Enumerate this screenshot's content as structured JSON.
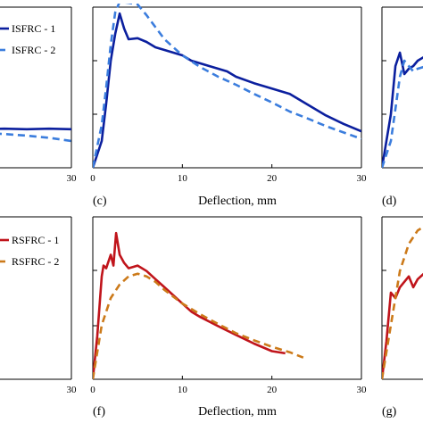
{
  "chart_data": [
    {
      "panel": "left-top-partial",
      "type": "line",
      "xlim": [
        0,
        30
      ],
      "x_ticks": [
        30
      ],
      "legend": {
        "placement": "top-left",
        "entries": [
          "ISFRC - 1",
          "ISFRC - 2"
        ]
      },
      "series": [
        {
          "name": "ISFRC - 1",
          "color": "#0b1f9e",
          "dash": false,
          "x": [
            20,
            22,
            24,
            26,
            28,
            30
          ],
          "y": [
            0.7,
            0.72,
            0.73,
            0.72,
            0.73,
            0.72
          ]
        },
        {
          "name": "ISFRC - 2",
          "color": "#3b7ddd",
          "dash": true,
          "x": [
            20,
            22,
            24,
            26,
            28,
            30
          ],
          "y": [
            0.66,
            0.65,
            0.63,
            0.6,
            0.56,
            0.5
          ]
        }
      ]
    },
    {
      "panel": "c",
      "type": "line",
      "label": "(c)",
      "xlabel": "Deflection, mm",
      "xlim": [
        0,
        30
      ],
      "ylim": [
        0,
        3
      ],
      "x_ticks": [
        0,
        10,
        20,
        30
      ],
      "series": [
        {
          "name": "ISFRC - 1",
          "color": "#0b1f9e",
          "dash": false,
          "x": [
            0,
            1,
            1.5,
            2,
            2.5,
            3,
            3.5,
            4,
            5,
            6,
            7,
            8,
            9,
            10,
            11,
            12,
            13,
            14,
            15,
            16,
            18,
            20,
            22,
            24,
            26,
            28,
            30
          ],
          "y": [
            0,
            0.5,
            1.2,
            2.0,
            2.5,
            2.88,
            2.6,
            2.4,
            2.42,
            2.35,
            2.25,
            2.2,
            2.15,
            2.1,
            2.0,
            1.95,
            1.9,
            1.85,
            1.8,
            1.7,
            1.58,
            1.48,
            1.38,
            1.18,
            0.98,
            0.82,
            0.68
          ]
        },
        {
          "name": "ISFRC - 2",
          "color": "#3b7ddd",
          "dash": true,
          "x": [
            0,
            1,
            1.5,
            2,
            2.5,
            3,
            4,
            5,
            6,
            8,
            10,
            12,
            14,
            16,
            18,
            20,
            22,
            24,
            26,
            28,
            30
          ],
          "y": [
            0,
            0.8,
            1.5,
            2.3,
            2.9,
            3.1,
            3.08,
            3.05,
            2.85,
            2.4,
            2.1,
            1.88,
            1.7,
            1.55,
            1.38,
            1.22,
            1.05,
            0.92,
            0.78,
            0.66,
            0.54
          ]
        }
      ]
    },
    {
      "panel": "d-partial",
      "type": "line",
      "label": "(d)",
      "xlim": [
        0,
        30
      ],
      "x_ticks": [],
      "series": [
        {
          "name": "ISFRC - 1",
          "color": "#0b1f9e",
          "dash": false,
          "x": [
            0,
            1,
            1.5,
            2,
            2.5,
            3,
            3.5,
            4,
            5,
            6,
            7,
            8
          ],
          "y": [
            0,
            1.0,
            1.9,
            2.15,
            1.75,
            1.85,
            1.9,
            2.0,
            2.1,
            2.3,
            2.6,
            2.95
          ]
        },
        {
          "name": "ISFRC - 2",
          "color": "#3b7ddd",
          "dash": true,
          "x": [
            0,
            1,
            1.5,
            2,
            2.5,
            3,
            3.5,
            4,
            5,
            6,
            7,
            8
          ],
          "y": [
            0,
            0.5,
            1.1,
            1.7,
            2.0,
            1.9,
            1.8,
            1.85,
            1.9,
            2.0,
            2.1,
            2.3
          ]
        }
      ]
    },
    {
      "panel": "left-bottom-partial",
      "type": "line",
      "xlim": [
        0,
        30
      ],
      "x_ticks": [
        30
      ],
      "legend": {
        "placement": "top-left",
        "entries": [
          "RSFRC - 1",
          "RSFRC - 2"
        ]
      },
      "series": []
    },
    {
      "panel": "f",
      "type": "line",
      "label": "(f)",
      "xlabel": "Deflection, mm",
      "xlim": [
        0,
        30
      ],
      "ylim": [
        0,
        3
      ],
      "x_ticks": [
        0,
        10,
        20,
        30
      ],
      "series": [
        {
          "name": "RSFRC - 1",
          "color": "#c0141b",
          "dash": false,
          "x": [
            0,
            0.5,
            1,
            1.2,
            1.5,
            2,
            2.3,
            2.6,
            3,
            3.5,
            4,
            5,
            6,
            7,
            8,
            9,
            10,
            11,
            12,
            14,
            16,
            18,
            20,
            21.5
          ],
          "y": [
            0,
            0.8,
            1.9,
            2.1,
            2.05,
            2.3,
            2.1,
            2.7,
            2.3,
            2.15,
            2.05,
            2.1,
            2.0,
            1.85,
            1.7,
            1.55,
            1.4,
            1.25,
            1.15,
            0.98,
            0.82,
            0.66,
            0.52,
            0.48
          ]
        },
        {
          "name": "RSFRC - 2",
          "color": "#cc7a1a",
          "dash": true,
          "x": [
            0,
            1,
            2,
            3,
            4,
            5,
            6,
            7,
            8,
            10,
            12,
            14,
            16,
            18,
            20,
            22,
            23.5
          ],
          "y": [
            0,
            1.0,
            1.5,
            1.75,
            1.9,
            1.95,
            1.9,
            1.8,
            1.65,
            1.4,
            1.2,
            1.02,
            0.85,
            0.72,
            0.6,
            0.5,
            0.4
          ]
        }
      ]
    },
    {
      "panel": "g-partial",
      "type": "line",
      "label": "(g)",
      "xlim": [
        0,
        30
      ],
      "x_ticks": [],
      "series": [
        {
          "name": "RSFRC - 1",
          "color": "#c0141b",
          "dash": false,
          "x": [
            0,
            0.5,
            1,
            1.5,
            2,
            2.5,
            3,
            3.5,
            4,
            5,
            6,
            7,
            8
          ],
          "y": [
            0,
            0.7,
            1.6,
            1.5,
            1.7,
            1.8,
            1.9,
            1.7,
            1.85,
            2.0,
            2.1,
            2.3,
            2.35
          ]
        },
        {
          "name": "RSFRC - 2",
          "color": "#cc7a1a",
          "dash": true,
          "x": [
            0,
            1,
            2,
            3,
            4,
            5,
            6,
            7,
            8
          ],
          "y": [
            0,
            1.0,
            2.0,
            2.5,
            2.75,
            2.85,
            2.95,
            3.0,
            3.0
          ]
        }
      ]
    }
  ]
}
